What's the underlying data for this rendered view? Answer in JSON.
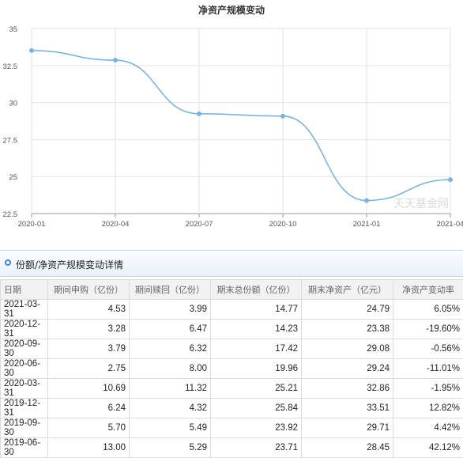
{
  "chart_data": {
    "type": "line",
    "title": "净资产规模变动",
    "x": [
      "2020-01",
      "2020-04",
      "2020-07",
      "2020-10",
      "2021-01",
      "2021-04"
    ],
    "values": [
      33.51,
      32.86,
      29.24,
      29.08,
      23.38,
      24.79
    ],
    "ylim": [
      22.5,
      35
    ],
    "yticks": [
      "22.5",
      "25",
      "27.5",
      "30",
      "32.5",
      "35"
    ],
    "grid": true,
    "color": "#7ab3e0",
    "watermark": "天天基金网"
  },
  "section": {
    "title": "份额/净资产规模变动详情"
  },
  "table": {
    "headers": [
      "日期",
      "期间申购（亿份）",
      "期间赎回（亿份）",
      "期末总份额（亿份）",
      "期末净资产（亿元）",
      "净资产变动率"
    ],
    "rows": [
      [
        "2021-03-31",
        "4.53",
        "3.99",
        "14.77",
        "24.79",
        "6.05%"
      ],
      [
        "2020-12-31",
        "3.28",
        "6.47",
        "14.23",
        "23.38",
        "-19.60%"
      ],
      [
        "2020-09-30",
        "3.79",
        "6.32",
        "17.42",
        "29.08",
        "-0.56%"
      ],
      [
        "2020-06-30",
        "2.75",
        "8.00",
        "19.96",
        "29.24",
        "-11.01%"
      ],
      [
        "2020-03-31",
        "10.69",
        "11.32",
        "25.21",
        "32.86",
        "-1.95%"
      ],
      [
        "2019-12-31",
        "6.24",
        "4.32",
        "25.84",
        "33.51",
        "12.82%"
      ],
      [
        "2019-09-30",
        "5.70",
        "5.49",
        "23.92",
        "29.71",
        "4.42%"
      ],
      [
        "2019-06-30",
        "13.00",
        "5.29",
        "23.71",
        "28.45",
        "42.12%"
      ]
    ]
  }
}
